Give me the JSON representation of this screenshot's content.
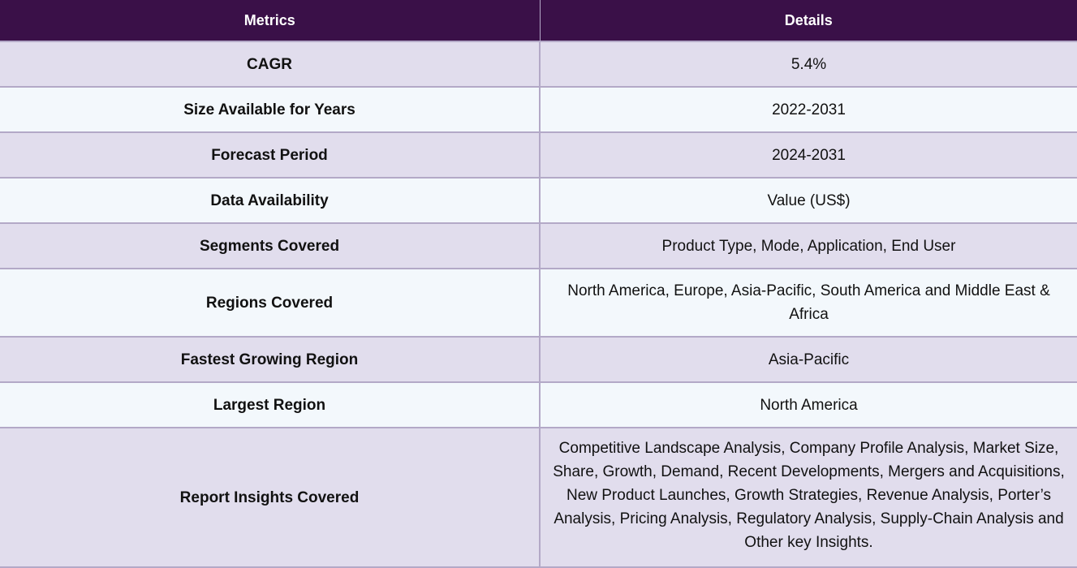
{
  "table": {
    "headers": [
      "Metrics",
      "Details"
    ],
    "rows": [
      {
        "metric": "CAGR",
        "detail": "5.4%"
      },
      {
        "metric": "Size Available for Years",
        "detail": "2022-2031"
      },
      {
        "metric": "Forecast Period",
        "detail": "2024-2031"
      },
      {
        "metric": "Data Availability",
        "detail": "Value (US$)"
      },
      {
        "metric": "Segments Covered",
        "detail": "Product Type, Mode, Application, End User"
      },
      {
        "metric": "Regions Covered",
        "detail": "North America, Europe, Asia-Pacific, South America and Middle East & Africa"
      },
      {
        "metric": "Fastest Growing Region",
        "detail": "Asia-Pacific"
      },
      {
        "metric": "Largest Region",
        "detail": "North America"
      },
      {
        "metric": "Report Insights Covered",
        "detail": "Competitive Landscape Analysis, Company Profile Analysis, Market Size, Share, Growth, Demand, Recent Developments, Mergers and Acquisitions, New Product Launches, Growth Strategies, Revenue Analysis, Porter’s Analysis, Pricing Analysis, Regulatory Analysis, Supply-Chain Analysis and Other key Insights."
      }
    ]
  },
  "colors": {
    "header_bg": "#3a1048",
    "row_odd": "#e1dded",
    "row_even": "#f3f8fc",
    "border": "#b3a9c7"
  }
}
